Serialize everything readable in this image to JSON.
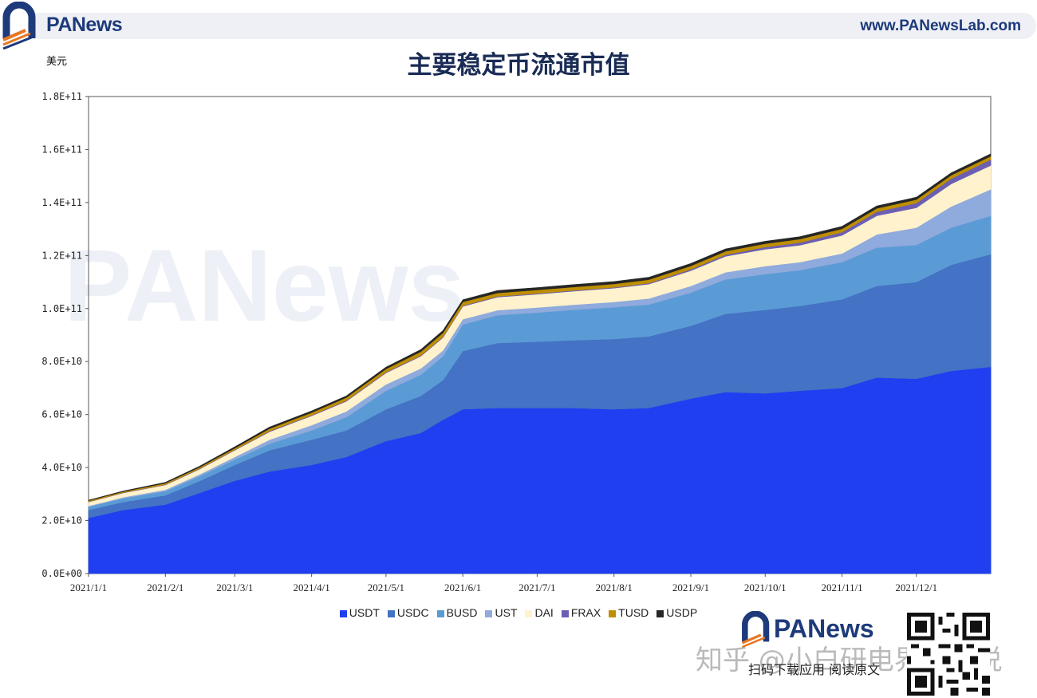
{
  "header": {
    "brand": "PANews",
    "url": "www.PANewsLab.com"
  },
  "chart_data": {
    "type": "area",
    "stacked": true,
    "title": "主要稳定币流通市值",
    "ylabel": "美元",
    "xlabel": "",
    "ylim": [
      0,
      180000000000
    ],
    "yticks": [
      "0.0E+00",
      "2.0E+10",
      "4.0E+10",
      "6.0E+10",
      "8.0E+10",
      "1.0E+11",
      "1.2E+11",
      "1.4E+11",
      "1.6E+11",
      "1.8E+11"
    ],
    "x": [
      "2021-01-01",
      "2021-01-15",
      "2021-02-01",
      "2021-02-15",
      "2021-03-01",
      "2021-03-15",
      "2021-04-01",
      "2021-04-15",
      "2021-05-01",
      "2021-05-15",
      "2021-05-24",
      "2021-06-01",
      "2021-06-15",
      "2021-07-01",
      "2021-07-15",
      "2021-08-01",
      "2021-08-15",
      "2021-09-01",
      "2021-09-15",
      "2021-10-01",
      "2021-10-15",
      "2021-11-01",
      "2021-11-15",
      "2021-12-01",
      "2021-12-15",
      "2021-12-31"
    ],
    "xtick_labels": [
      {
        "date": "2021-01-01",
        "label": "2021/1/1"
      },
      {
        "date": "2021-02-01",
        "label": "2021/2/1"
      },
      {
        "date": "2021-03-01",
        "label": "2021/3/1"
      },
      {
        "date": "2021-04-01",
        "label": "2021/4/1"
      },
      {
        "date": "2021-05-01",
        "label": "2021/5/1"
      },
      {
        "date": "2021-06-01",
        "label": "2021/6/1"
      },
      {
        "date": "2021-07-01",
        "label": "2021/7/1"
      },
      {
        "date": "2021-08-01",
        "label": "2021/8/1"
      },
      {
        "date": "2021-09-01",
        "label": "2021/9/1"
      },
      {
        "date": "2021-10-01",
        "label": "2021/10/1"
      },
      {
        "date": "2021-11-01",
        "label": "2021/11/1"
      },
      {
        "date": "2021-12-01",
        "label": "2021/12/1"
      }
    ],
    "series": [
      {
        "name": "USDT",
        "color": "#1f3ff0",
        "values": [
          21.0,
          24.0,
          26.0,
          30.5,
          35.0,
          38.5,
          41.0,
          44.0,
          50.0,
          53.0,
          58.0,
          62.0,
          62.5,
          62.5,
          62.5,
          62.0,
          62.5,
          66.0,
          68.5,
          68.0,
          69.0,
          70.0,
          74.0,
          73.5,
          76.5,
          78.0
        ]
      },
      {
        "name": "USDC",
        "color": "#4472c4",
        "values": [
          3.0,
          3.0,
          3.5,
          4.5,
          6.0,
          8.0,
          9.5,
          10.0,
          12.0,
          14.0,
          15.0,
          22.0,
          24.5,
          25.0,
          25.5,
          26.5,
          27.0,
          27.5,
          29.5,
          31.5,
          32.0,
          33.5,
          34.5,
          36.5,
          40.0,
          42.5
        ]
      },
      {
        "name": "BUSD",
        "color": "#5b9bd5",
        "values": [
          1.2,
          1.4,
          1.6,
          1.8,
          2.0,
          2.5,
          3.5,
          5.0,
          7.0,
          8.0,
          9.0,
          10.0,
          10.5,
          11.0,
          11.5,
          12.0,
          12.0,
          12.5,
          13.0,
          13.5,
          13.5,
          14.0,
          14.5,
          14.0,
          14.0,
          14.5
        ]
      },
      {
        "name": "UST",
        "color": "#8faadc",
        "values": [
          0.3,
          0.4,
          0.5,
          0.7,
          1.0,
          1.5,
          2.0,
          2.2,
          2.4,
          2.4,
          2.2,
          2.0,
          1.9,
          1.9,
          1.9,
          2.0,
          2.3,
          2.5,
          2.7,
          3.0,
          3.0,
          3.3,
          5.0,
          6.5,
          8.0,
          10.0
        ]
      },
      {
        "name": "DAI",
        "color": "#fff2cc",
        "values": [
          1.5,
          1.6,
          1.8,
          2.0,
          2.5,
          3.0,
          3.5,
          3.8,
          4.3,
          4.6,
          4.8,
          4.8,
          4.9,
          5.0,
          5.1,
          5.2,
          5.4,
          5.8,
          6.0,
          6.4,
          6.4,
          6.8,
          7.0,
          7.5,
          8.5,
          9.0
        ]
      },
      {
        "name": "FRAX",
        "color": "#6c5fb3",
        "values": [
          0.1,
          0.15,
          0.2,
          0.2,
          0.2,
          0.25,
          0.25,
          0.3,
          0.3,
          0.3,
          0.3,
          0.3,
          0.3,
          0.3,
          0.3,
          0.3,
          0.4,
          0.5,
          0.6,
          0.8,
          1.0,
          1.2,
          1.5,
          1.8,
          2.0,
          2.2
        ]
      },
      {
        "name": "TUSD",
        "color": "#bf8f00",
        "values": [
          0.4,
          0.4,
          0.5,
          0.5,
          0.6,
          0.9,
          1.0,
          1.1,
          1.2,
          1.4,
          1.5,
          1.4,
          1.3,
          1.3,
          1.3,
          1.3,
          1.3,
          1.3,
          1.3,
          1.3,
          1.3,
          1.3,
          1.3,
          1.3,
          1.3,
          1.3
        ]
      },
      {
        "name": "USDP",
        "color": "#262626",
        "values": [
          0.2,
          0.2,
          0.3,
          0.4,
          0.5,
          0.6,
          0.6,
          0.6,
          0.7,
          0.8,
          0.9,
          0.8,
          0.9,
          0.9,
          0.9,
          0.9,
          0.9,
          0.9,
          0.9,
          0.9,
          0.9,
          0.9,
          0.9,
          0.9,
          0.9,
          0.9
        ]
      }
    ],
    "value_unit_multiplier": 1000000000,
    "legend_position": "bottom",
    "grid": false
  },
  "footer": {
    "brand": "PANews",
    "tagline": "扫码下载应用 阅读原文",
    "zhihu": "知乎 @小白研电界研究说"
  },
  "watermark": "PANews"
}
